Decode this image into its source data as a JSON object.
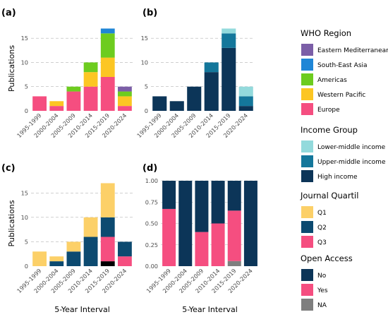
{
  "colors": {
    "who": {
      "Eastern Mediterranean": "#7b5ea7",
      "South-East Asia": "#1f86d6",
      "Americas": "#6dcc1f",
      "Western Pacific": "#fcc623",
      "Europe": "#f54e80"
    },
    "income": {
      "Lower-middle income": "#93dadc",
      "Upper-middle income": "#14779b",
      "High income": "#0c3558"
    },
    "quartile": {
      "Q1": "#fcd068",
      "Q2": "#0c4a70",
      "Q3": "#f54e80"
    },
    "access": {
      "No": "#0c3558",
      "Yes": "#f54e80",
      "NA": "#7f7f7f"
    }
  },
  "chart_data": [
    {
      "panel": "(a)",
      "type": "bar",
      "stacked": true,
      "categories": [
        "1995-1999",
        "2000-2004",
        "2005-2009",
        "2010-2014",
        "2015-2019",
        "2020-2024"
      ],
      "ylabel": "Publications",
      "xlabel": "",
      "ylim": [
        0,
        17.5
      ],
      "yticks": [
        "0",
        "5",
        "10",
        "15"
      ],
      "grid": true,
      "series": [
        {
          "name": "Europe",
          "values": [
            3,
            1,
            4,
            5,
            7,
            1
          ]
        },
        {
          "name": "Western Pacific",
          "values": [
            0,
            1,
            0,
            3,
            4,
            2
          ]
        },
        {
          "name": "Americas",
          "values": [
            0,
            0,
            1,
            2,
            5,
            1
          ]
        },
        {
          "name": "South-East Asia",
          "values": [
            0,
            0,
            0,
            0,
            1,
            0
          ]
        },
        {
          "name": "Eastern Mediterranean",
          "values": [
            0,
            0,
            0,
            0,
            0,
            1
          ]
        }
      ]
    },
    {
      "panel": "(b)",
      "type": "bar",
      "stacked": true,
      "categories": [
        "1995-1999",
        "2000-2004",
        "2005-2009",
        "2010-2014",
        "2015-2019",
        "2020-2024"
      ],
      "ylabel": "",
      "xlabel": "",
      "ylim": [
        0,
        17.5
      ],
      "yticks": [
        "0",
        "5",
        "10",
        "15"
      ],
      "grid": true,
      "series": [
        {
          "name": "High income",
          "values": [
            3,
            2,
            5,
            8,
            13,
            1
          ]
        },
        {
          "name": "Upper-middle income",
          "values": [
            0,
            0,
            0,
            2,
            3,
            2
          ]
        },
        {
          "name": "Lower-middle income",
          "values": [
            0,
            0,
            0,
            0,
            1,
            2
          ]
        }
      ]
    },
    {
      "panel": "(c)",
      "type": "bar",
      "stacked": true,
      "categories": [
        "1995-1999",
        "2000-2004",
        "2005-2009",
        "2010-2014",
        "2015-2019",
        "2020-2024"
      ],
      "ylabel": "Publications",
      "xlabel": "5-Year Interval",
      "ylim": [
        0,
        17.5
      ],
      "yticks": [
        "0",
        "5",
        "10",
        "15"
      ],
      "grid": true,
      "series": [
        {
          "name": "NA",
          "values": [
            0,
            0,
            0,
            0,
            1,
            0
          ]
        },
        {
          "name": "Q3",
          "values": [
            0,
            0,
            0,
            0,
            5,
            2
          ]
        },
        {
          "name": "Q2",
          "values": [
            0,
            1,
            3,
            6,
            4,
            3
          ]
        },
        {
          "name": "Q1",
          "values": [
            3,
            1,
            2,
            4,
            7,
            0
          ]
        }
      ]
    },
    {
      "panel": "(d)",
      "type": "bar",
      "stacked": true,
      "categories": [
        "1995-1999",
        "2000-2004",
        "2005-2009",
        "2010-2014",
        "2015-2019",
        "2020-2024"
      ],
      "ylabel": "",
      "xlabel": "5-Year Interval",
      "ylim": [
        0,
        1
      ],
      "yticks": [
        "0.00",
        "0.25",
        "0.50",
        "0.75",
        "1.00"
      ],
      "grid": true,
      "series": [
        {
          "name": "NA",
          "values": [
            0,
            0,
            0,
            0,
            0.06,
            0
          ]
        },
        {
          "name": "Yes",
          "values": [
            0.67,
            0,
            0.4,
            0.5,
            0.59,
            0
          ]
        },
        {
          "name": "No",
          "values": [
            0.33,
            1,
            0.6,
            0.5,
            0.35,
            1
          ]
        }
      ]
    }
  ],
  "legends": [
    {
      "title": "WHO Region",
      "items": [
        "Eastern Mediterranean",
        "South-East Asia",
        "Americas",
        "Western Pacific",
        "Europe"
      ],
      "palette": "who"
    },
    {
      "title": "Income Group",
      "items": [
        "Lower-middle income",
        "Upper-middle income",
        "High income"
      ],
      "palette": "income"
    },
    {
      "title": "Journal Quartil",
      "items": [
        "Q1",
        "Q2",
        "Q3"
      ],
      "palette": "quartile"
    },
    {
      "title": "Open Access",
      "items": [
        "No",
        "Yes",
        "NA"
      ],
      "palette": "access"
    }
  ]
}
